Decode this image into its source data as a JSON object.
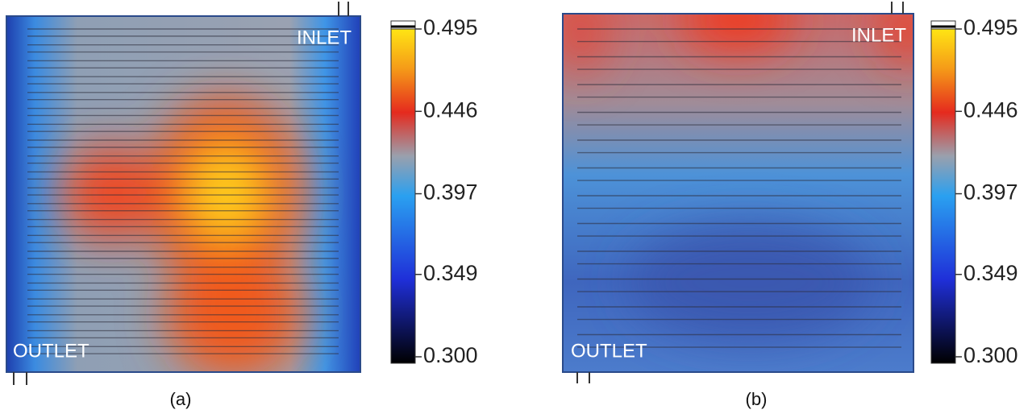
{
  "panels": [
    {
      "caption": "(a)",
      "inlet": "INLET",
      "outlet": "OUTLET",
      "colorbar": {
        "lim": [
          0.3,
          0.495
        ],
        "ticks": [
          0.495,
          0.446,
          0.397,
          0.349,
          {
            "value": 0.3,
            "label": "0.300"
          }
        ]
      }
    },
    {
      "caption": "(b)",
      "inlet": "INLET",
      "outlet": "OUTLET",
      "colorbar": {
        "lim": [
          0.3,
          0.495
        ],
        "ticks": [
          0.495,
          0.446,
          0.397,
          0.349,
          {
            "value": 0.3,
            "label": "0.300"
          }
        ]
      }
    }
  ]
}
